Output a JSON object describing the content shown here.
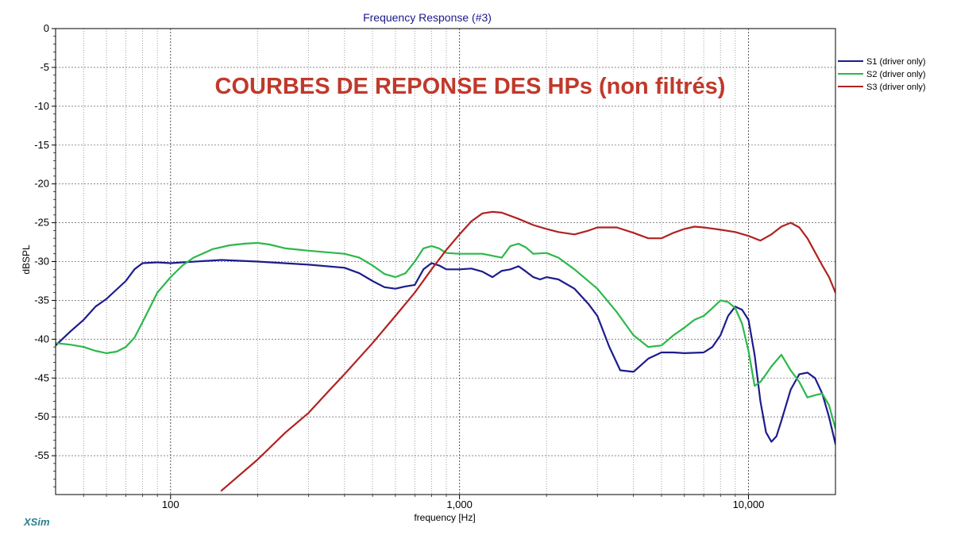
{
  "chart_data": {
    "type": "line",
    "title": "Frequency Response (#3)",
    "annotation": "COURBES DE REPONSE DES HPs (non filtrés)",
    "xlabel": "frequency [Hz]",
    "ylabel": "dBSPL",
    "xscale": "log",
    "xlim": [
      40,
      20000
    ],
    "ylim": [
      -60,
      0
    ],
    "yticks": [
      0,
      -5,
      -10,
      -15,
      -20,
      -25,
      -30,
      -35,
      -40,
      -45,
      -50,
      -55
    ],
    "xtick_labels": [
      {
        "value": 100,
        "label": "100"
      },
      {
        "value": 1000,
        "label": "1,000"
      },
      {
        "value": 10000,
        "label": "10,000"
      }
    ],
    "grid": "on",
    "legend_position": "top-right",
    "brand": "XSim",
    "series": [
      {
        "name": "S1 (driver only)",
        "color": "#1c1c8c",
        "points": [
          [
            40,
            -40.8
          ],
          [
            45,
            -39.0
          ],
          [
            50,
            -37.5
          ],
          [
            55,
            -35.8
          ],
          [
            60,
            -34.8
          ],
          [
            70,
            -32.5
          ],
          [
            75,
            -31.0
          ],
          [
            80,
            -30.2
          ],
          [
            90,
            -30.1
          ],
          [
            100,
            -30.2
          ],
          [
            110,
            -30.1
          ],
          [
            150,
            -29.8
          ],
          [
            200,
            -30.0
          ],
          [
            300,
            -30.4
          ],
          [
            400,
            -30.8
          ],
          [
            450,
            -31.5
          ],
          [
            500,
            -32.5
          ],
          [
            550,
            -33.3
          ],
          [
            600,
            -33.5
          ],
          [
            650,
            -33.2
          ],
          [
            700,
            -33.0
          ],
          [
            750,
            -31.0
          ],
          [
            800,
            -30.2
          ],
          [
            850,
            -30.5
          ],
          [
            900,
            -31.0
          ],
          [
            1000,
            -31.0
          ],
          [
            1100,
            -30.9
          ],
          [
            1200,
            -31.3
          ],
          [
            1300,
            -32.0
          ],
          [
            1400,
            -31.2
          ],
          [
            1500,
            -31.0
          ],
          [
            1600,
            -30.6
          ],
          [
            1700,
            -31.3
          ],
          [
            1800,
            -32.0
          ],
          [
            1900,
            -32.3
          ],
          [
            2000,
            -32.0
          ],
          [
            2200,
            -32.3
          ],
          [
            2500,
            -33.5
          ],
          [
            2800,
            -35.5
          ],
          [
            3000,
            -37.0
          ],
          [
            3300,
            -41.0
          ],
          [
            3600,
            -44.0
          ],
          [
            4000,
            -44.2
          ],
          [
            4500,
            -42.5
          ],
          [
            5000,
            -41.7
          ],
          [
            5500,
            -41.7
          ],
          [
            6000,
            -41.8
          ],
          [
            7000,
            -41.7
          ],
          [
            7500,
            -41.0
          ],
          [
            8000,
            -39.5
          ],
          [
            8500,
            -37.0
          ],
          [
            9000,
            -35.8
          ],
          [
            9500,
            -36.2
          ],
          [
            10000,
            -37.5
          ],
          [
            10500,
            -42.0
          ],
          [
            11000,
            -48.0
          ],
          [
            11500,
            -52.0
          ],
          [
            12000,
            -53.2
          ],
          [
            12500,
            -52.5
          ],
          [
            13000,
            -50.5
          ],
          [
            14000,
            -46.5
          ],
          [
            15000,
            -44.5
          ],
          [
            16000,
            -44.3
          ],
          [
            17000,
            -45.0
          ],
          [
            18000,
            -47.0
          ],
          [
            19000,
            -50.0
          ],
          [
            20000,
            -53.5
          ]
        ]
      },
      {
        "name": "S2 (driver only)",
        "color": "#2db84a",
        "points": [
          [
            40,
            -40.5
          ],
          [
            45,
            -40.7
          ],
          [
            50,
            -41.0
          ],
          [
            55,
            -41.5
          ],
          [
            60,
            -41.8
          ],
          [
            65,
            -41.6
          ],
          [
            70,
            -41.0
          ],
          [
            75,
            -39.8
          ],
          [
            80,
            -37.8
          ],
          [
            90,
            -34.0
          ],
          [
            100,
            -32.0
          ],
          [
            110,
            -30.5
          ],
          [
            120,
            -29.5
          ],
          [
            140,
            -28.4
          ],
          [
            160,
            -27.9
          ],
          [
            180,
            -27.7
          ],
          [
            200,
            -27.6
          ],
          [
            220,
            -27.8
          ],
          [
            250,
            -28.3
          ],
          [
            300,
            -28.6
          ],
          [
            400,
            -29.0
          ],
          [
            450,
            -29.5
          ],
          [
            500,
            -30.5
          ],
          [
            550,
            -31.6
          ],
          [
            600,
            -32.0
          ],
          [
            650,
            -31.5
          ],
          [
            700,
            -30.0
          ],
          [
            750,
            -28.3
          ],
          [
            800,
            -28.0
          ],
          [
            850,
            -28.3
          ],
          [
            900,
            -28.9
          ],
          [
            1000,
            -29.0
          ],
          [
            1200,
            -29.0
          ],
          [
            1400,
            -29.5
          ],
          [
            1500,
            -28.0
          ],
          [
            1600,
            -27.7
          ],
          [
            1700,
            -28.2
          ],
          [
            1800,
            -29.0
          ],
          [
            2000,
            -28.9
          ],
          [
            2200,
            -29.5
          ],
          [
            2500,
            -31.0
          ],
          [
            3000,
            -33.5
          ],
          [
            3500,
            -36.5
          ],
          [
            4000,
            -39.5
          ],
          [
            4500,
            -41.0
          ],
          [
            5000,
            -40.8
          ],
          [
            5500,
            -39.5
          ],
          [
            6000,
            -38.5
          ],
          [
            6500,
            -37.5
          ],
          [
            7000,
            -37.0
          ],
          [
            7500,
            -36.0
          ],
          [
            8000,
            -35.0
          ],
          [
            8500,
            -35.2
          ],
          [
            9000,
            -36.0
          ],
          [
            9500,
            -38.0
          ],
          [
            10000,
            -41.5
          ],
          [
            10500,
            -46.0
          ],
          [
            11000,
            -45.5
          ],
          [
            11500,
            -44.5
          ],
          [
            12000,
            -43.5
          ],
          [
            13000,
            -42.0
          ],
          [
            14000,
            -44.0
          ],
          [
            15000,
            -45.5
          ],
          [
            16000,
            -47.5
          ],
          [
            17000,
            -47.2
          ],
          [
            18000,
            -47.0
          ],
          [
            19000,
            -48.5
          ],
          [
            20000,
            -51.5
          ]
        ]
      },
      {
        "name": "S3 (driver only)",
        "color": "#b22222",
        "points": [
          [
            150,
            -59.5
          ],
          [
            200,
            -55.5
          ],
          [
            250,
            -52.0
          ],
          [
            300,
            -49.5
          ],
          [
            350,
            -46.8
          ],
          [
            400,
            -44.5
          ],
          [
            500,
            -40.5
          ],
          [
            600,
            -37.0
          ],
          [
            700,
            -34.0
          ],
          [
            800,
            -31.0
          ],
          [
            900,
            -28.5
          ],
          [
            1000,
            -26.5
          ],
          [
            1100,
            -24.8
          ],
          [
            1200,
            -23.8
          ],
          [
            1300,
            -23.6
          ],
          [
            1400,
            -23.7
          ],
          [
            1600,
            -24.5
          ],
          [
            1800,
            -25.3
          ],
          [
            2000,
            -25.8
          ],
          [
            2200,
            -26.2
          ],
          [
            2500,
            -26.5
          ],
          [
            2800,
            -26.0
          ],
          [
            3000,
            -25.6
          ],
          [
            3500,
            -25.6
          ],
          [
            4000,
            -26.3
          ],
          [
            4500,
            -27.0
          ],
          [
            5000,
            -27.0
          ],
          [
            5500,
            -26.3
          ],
          [
            6000,
            -25.8
          ],
          [
            6500,
            -25.5
          ],
          [
            7000,
            -25.6
          ],
          [
            8000,
            -25.9
          ],
          [
            9000,
            -26.2
          ],
          [
            10000,
            -26.7
          ],
          [
            11000,
            -27.3
          ],
          [
            12000,
            -26.5
          ],
          [
            13000,
            -25.5
          ],
          [
            14000,
            -25.0
          ],
          [
            15000,
            -25.6
          ],
          [
            16000,
            -27.0
          ],
          [
            17000,
            -28.8
          ],
          [
            18000,
            -30.5
          ],
          [
            19000,
            -32.0
          ],
          [
            20000,
            -34.0
          ]
        ]
      }
    ]
  }
}
